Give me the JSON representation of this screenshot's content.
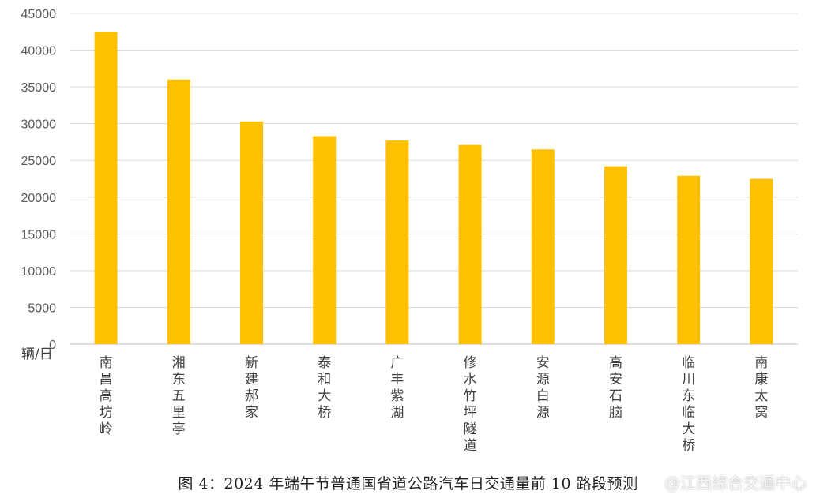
{
  "chart_data": {
    "type": "bar",
    "categories": [
      "南昌高坊岭",
      "湘东五里亭",
      "新建郝家",
      "泰和大桥",
      "广丰紫湖",
      "修水竹坪隧道",
      "安源白源",
      "高安石脑",
      "临川东临大桥",
      "南康太窝"
    ],
    "values": [
      42500,
      36000,
      30300,
      28300,
      27700,
      27100,
      26500,
      24200,
      22900,
      22500
    ],
    "ylim": [
      0,
      45000
    ],
    "yticks": [
      0,
      5000,
      10000,
      15000,
      20000,
      25000,
      30000,
      35000,
      40000,
      45000
    ],
    "ylabel": "辆/日",
    "xlabel": "",
    "grid": true,
    "bar_color": "#ffc000"
  },
  "caption": "图 4：2024 年端午节普通国省道公路汽车日交通量前 10 路段预测",
  "watermark": "@江西综合交通中心"
}
